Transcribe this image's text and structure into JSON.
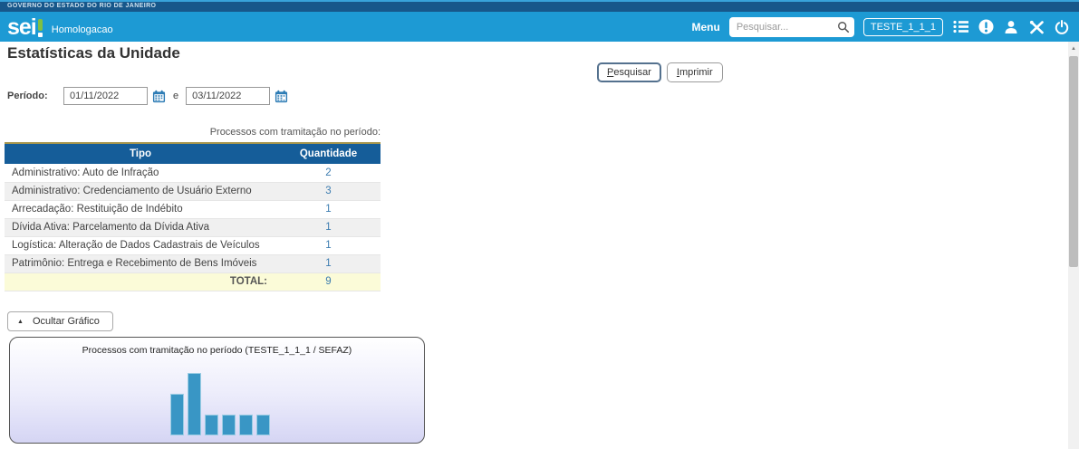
{
  "top_bar": {
    "government": "GOVERNO DO ESTADO DO RIO DE JANEIRO"
  },
  "header": {
    "logo_text": "sei",
    "environment": "Homologacao",
    "menu_label": "Menu",
    "search_placeholder": "Pesquisar...",
    "unit_label": "TESTE_1_1_1",
    "icons": [
      "list-icon",
      "alert-circle-icon",
      "user-icon",
      "tools-icon",
      "power-icon"
    ]
  },
  "page": {
    "title": "Estatísticas da Unidade",
    "buttons": {
      "search": "Pesquisar",
      "print": "Imprimir"
    },
    "period": {
      "label": "Período:",
      "start": "01/11/2022",
      "connector": "e",
      "end": "03/11/2022"
    }
  },
  "table": {
    "caption": "Processos com tramitação no período:",
    "headers": [
      "Tipo",
      "Quantidade"
    ],
    "rows": [
      {
        "tipo": "Administrativo: Auto de Infração",
        "quantidade": "2"
      },
      {
        "tipo": "Administrativo: Credenciamento de Usuário Externo",
        "quantidade": "3"
      },
      {
        "tipo": "Arrecadação: Restituição de Indébito",
        "quantidade": "1"
      },
      {
        "tipo": "Dívida Ativa: Parcelamento da Dívida Ativa",
        "quantidade": "1"
      },
      {
        "tipo": "Logística: Alteração de Dados Cadastrais de Veículos",
        "quantidade": "1"
      },
      {
        "tipo": "Patrimônio: Entrega e Recebimento de Bens Imóveis",
        "quantidade": "1"
      }
    ],
    "total_label": "TOTAL:",
    "total_value": "9"
  },
  "chart_toggle_label": "Ocultar Gráfico",
  "chart_data": {
    "type": "bar",
    "title": "Processos com tramitação no período (TESTE_1_1_1 / SEFAZ)",
    "categories": [
      "Administrativo: Auto de Infração",
      "Administrativo: Credenciamento de Usuário Externo",
      "Arrecadação: Restituição de Indébito",
      "Dívida Ativa: Parcelamento da Dívida Ativa",
      "Logística: Alteração de Dados Cadastrais de Veículos",
      "Patrimônio: Entrega e Recebimento de Bens Imóveis"
    ],
    "values": [
      2,
      3,
      1,
      1,
      1,
      1
    ],
    "ylim": [
      0,
      3
    ],
    "bar_color": "#3996c5",
    "legend": "none",
    "grid": false
  },
  "colors": {
    "header_blue": "#1d9ad4",
    "gov_strip_blue": "#17578a",
    "table_header_blue": "#155d99",
    "link_blue": "#3c7cb0",
    "total_row_bg": "#fbfbd8",
    "bar_blue": "#3996c5",
    "logo_green": "#7fc043"
  }
}
